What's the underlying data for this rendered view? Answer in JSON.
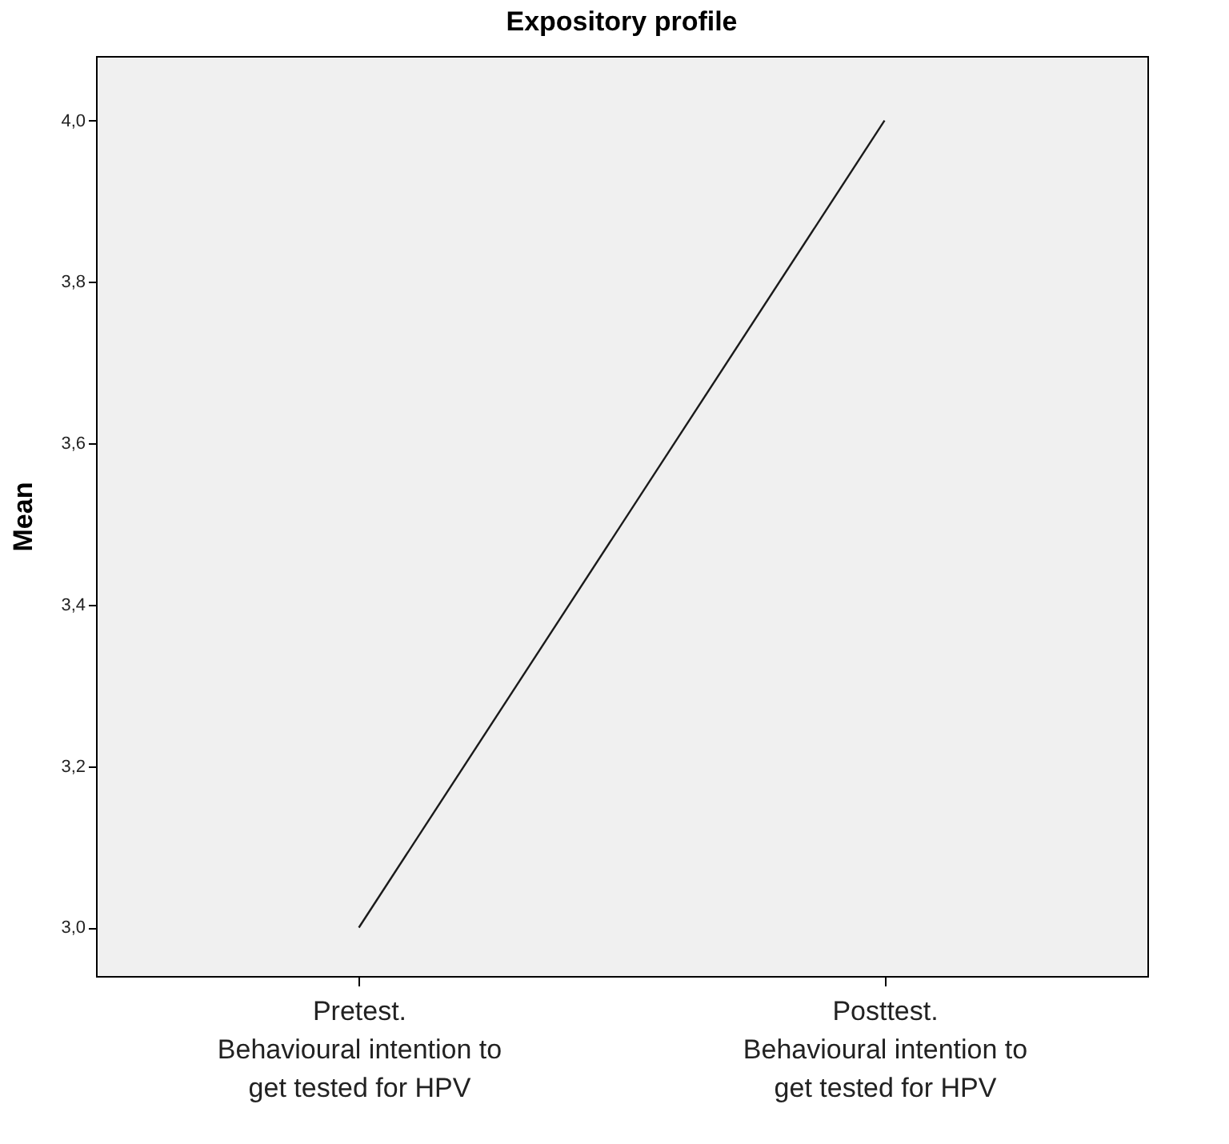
{
  "chart_data": {
    "type": "line",
    "title": "Expository profile",
    "ylabel": "Mean",
    "categories": [
      "Pretest.\nBehavioural intention to\nget tested for HPV",
      "Posttest.\nBehavioural intention to\nget tested for HPV"
    ],
    "series": [
      {
        "color": "#1a1a1a",
        "values": [
          3.0,
          4.0
        ]
      }
    ],
    "ylim": [
      2.94,
      4.08
    ],
    "yticks": [
      {
        "value": 3.0,
        "label": "3,0"
      },
      {
        "value": 3.2,
        "label": "3,2"
      },
      {
        "value": 3.4,
        "label": "3,4"
      },
      {
        "value": 3.6,
        "label": "3,6"
      },
      {
        "value": 3.8,
        "label": "3,8"
      },
      {
        "value": 4.0,
        "label": "4,0"
      }
    ],
    "grid": false,
    "legend": false,
    "marker": "none",
    "line_style": "solid"
  }
}
